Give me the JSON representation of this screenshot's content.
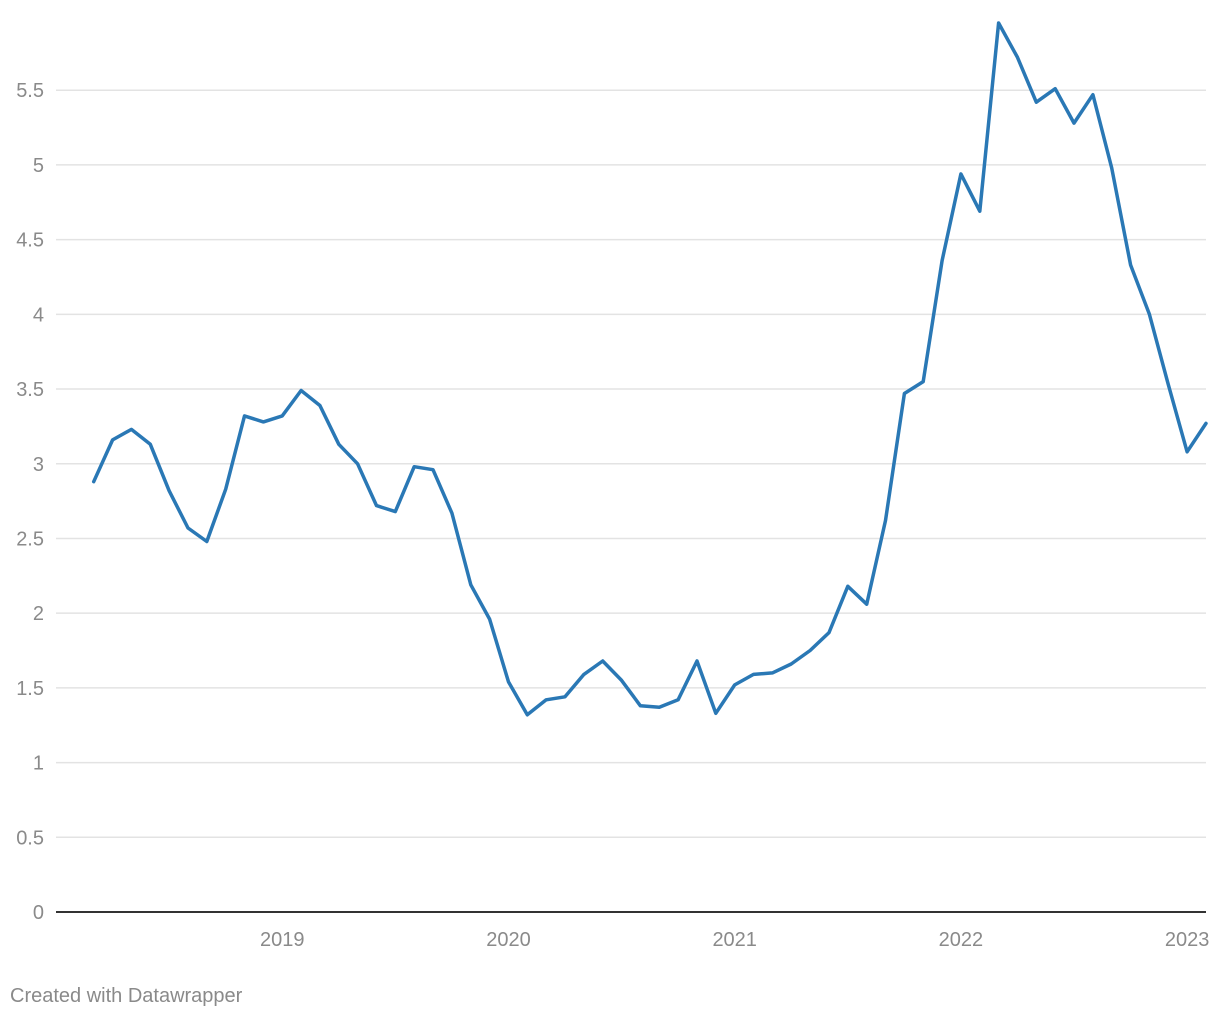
{
  "chart_data": {
    "type": "line",
    "title": "",
    "xlabel": "",
    "ylabel": "",
    "x_ticks": [
      "2019",
      "2020",
      "2021",
      "2022",
      "2023"
    ],
    "y_ticks": [
      "0",
      "0.5",
      "1",
      "1.5",
      "2",
      "2.5",
      "3",
      "3.5",
      "4",
      "4.5",
      "5",
      "5.5"
    ],
    "ylim": [
      0,
      5.97
    ],
    "xlim": [
      "2018-07",
      "2023-08"
    ],
    "grid": true,
    "colors": {
      "line": "#2a78b5",
      "grid": "#e3e3e3",
      "axis": "#333333",
      "text": "#8a8a8a"
    },
    "series": [
      {
        "x": [
          "2018-09",
          "2018-10",
          "2018-11",
          "2018-12",
          "2019-01",
          "2019-02",
          "2019-03",
          "2019-04",
          "2019-05",
          "2019-06",
          "2019-07",
          "2019-08",
          "2019-09",
          "2019-10",
          "2019-11",
          "2019-12",
          "2020-01",
          "2020-02",
          "2020-03",
          "2020-04",
          "2020-05",
          "2020-06",
          "2020-07",
          "2020-08",
          "2020-09",
          "2020-10",
          "2020-11",
          "2020-12",
          "2021-01",
          "2021-02",
          "2021-03",
          "2021-04",
          "2021-05",
          "2021-06",
          "2021-07",
          "2021-08",
          "2021-09",
          "2021-10",
          "2021-11",
          "2021-12",
          "2022-01",
          "2022-02",
          "2022-03",
          "2022-04",
          "2022-05",
          "2022-06",
          "2022-07",
          "2022-08",
          "2022-09",
          "2022-10",
          "2022-11",
          "2022-12",
          "2023-01",
          "2023-02",
          "2023-03",
          "2023-04",
          "2023-05",
          "2023-06",
          "2023-07",
          "2023-08"
        ],
        "values": [
          2.88,
          3.16,
          3.23,
          3.13,
          2.82,
          2.57,
          2.48,
          2.83,
          3.32,
          3.28,
          3.32,
          3.49,
          3.39,
          3.13,
          3.0,
          2.72,
          2.68,
          2.98,
          2.96,
          2.67,
          2.19,
          1.96,
          1.54,
          1.32,
          1.42,
          1.44,
          1.59,
          1.68,
          1.55,
          1.38,
          1.37,
          1.42,
          1.68,
          1.33,
          1.52,
          1.59,
          1.6,
          1.66,
          1.75,
          1.87,
          2.18,
          2.06,
          2.62,
          3.47,
          3.55,
          4.36,
          4.94,
          4.69,
          5.95,
          5.72,
          5.42,
          5.51,
          5.28,
          5.47,
          4.98,
          4.33,
          4.0,
          3.53,
          3.08,
          3.27
        ]
      }
    ]
  },
  "footer": {
    "credit": "Created with Datawrapper"
  }
}
